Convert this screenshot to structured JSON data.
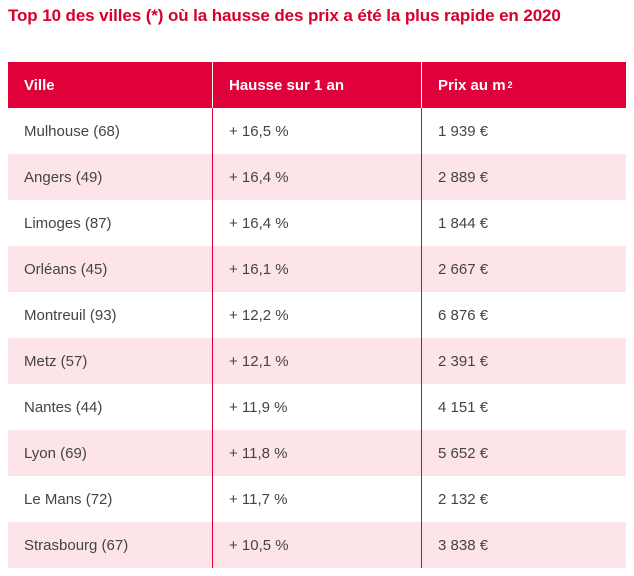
{
  "title": "Top 10 des villes (*) où la hausse des prix a été la plus rapide en 2020",
  "table": {
    "headers": [
      "Ville",
      "Hausse sur 1 an",
      "Prix au m",
      "2"
    ],
    "rows": [
      {
        "ville": "Mulhouse (68)",
        "hausse": "+ 16,5 %",
        "prix": "1 939 €"
      },
      {
        "ville": "Angers (49)",
        "hausse": "+ 16,4 %",
        "prix": "2 889 €"
      },
      {
        "ville": "Limoges (87)",
        "hausse": "+ 16,4 %",
        "prix": "1 844 €"
      },
      {
        "ville": "Orléans (45)",
        "hausse": "+ 16,1 %",
        "prix": "2 667 €"
      },
      {
        "ville": "Montreuil (93)",
        "hausse": "+ 12,2 %",
        "prix": "6 876 €"
      },
      {
        "ville": "Metz (57)",
        "hausse": "+ 12,1 %",
        "prix": "2 391 €"
      },
      {
        "ville": "Nantes (44)",
        "hausse": "+ 11,9 %",
        "prix": "4 151 €"
      },
      {
        "ville": "Lyon (69)",
        "hausse": "+ 11,8 %",
        "prix": "5 652 €"
      },
      {
        "ville": "Le Mans (72)",
        "hausse": "+ 11,7 %",
        "prix": "2 132 €"
      },
      {
        "ville": "Strasbourg (67)",
        "hausse": "+ 10,5 %",
        "prix": "3 838 €"
      }
    ]
  },
  "colors": {
    "accent": "#e0003a",
    "title": "#d5002c",
    "row_alt": "#fce4e9"
  }
}
